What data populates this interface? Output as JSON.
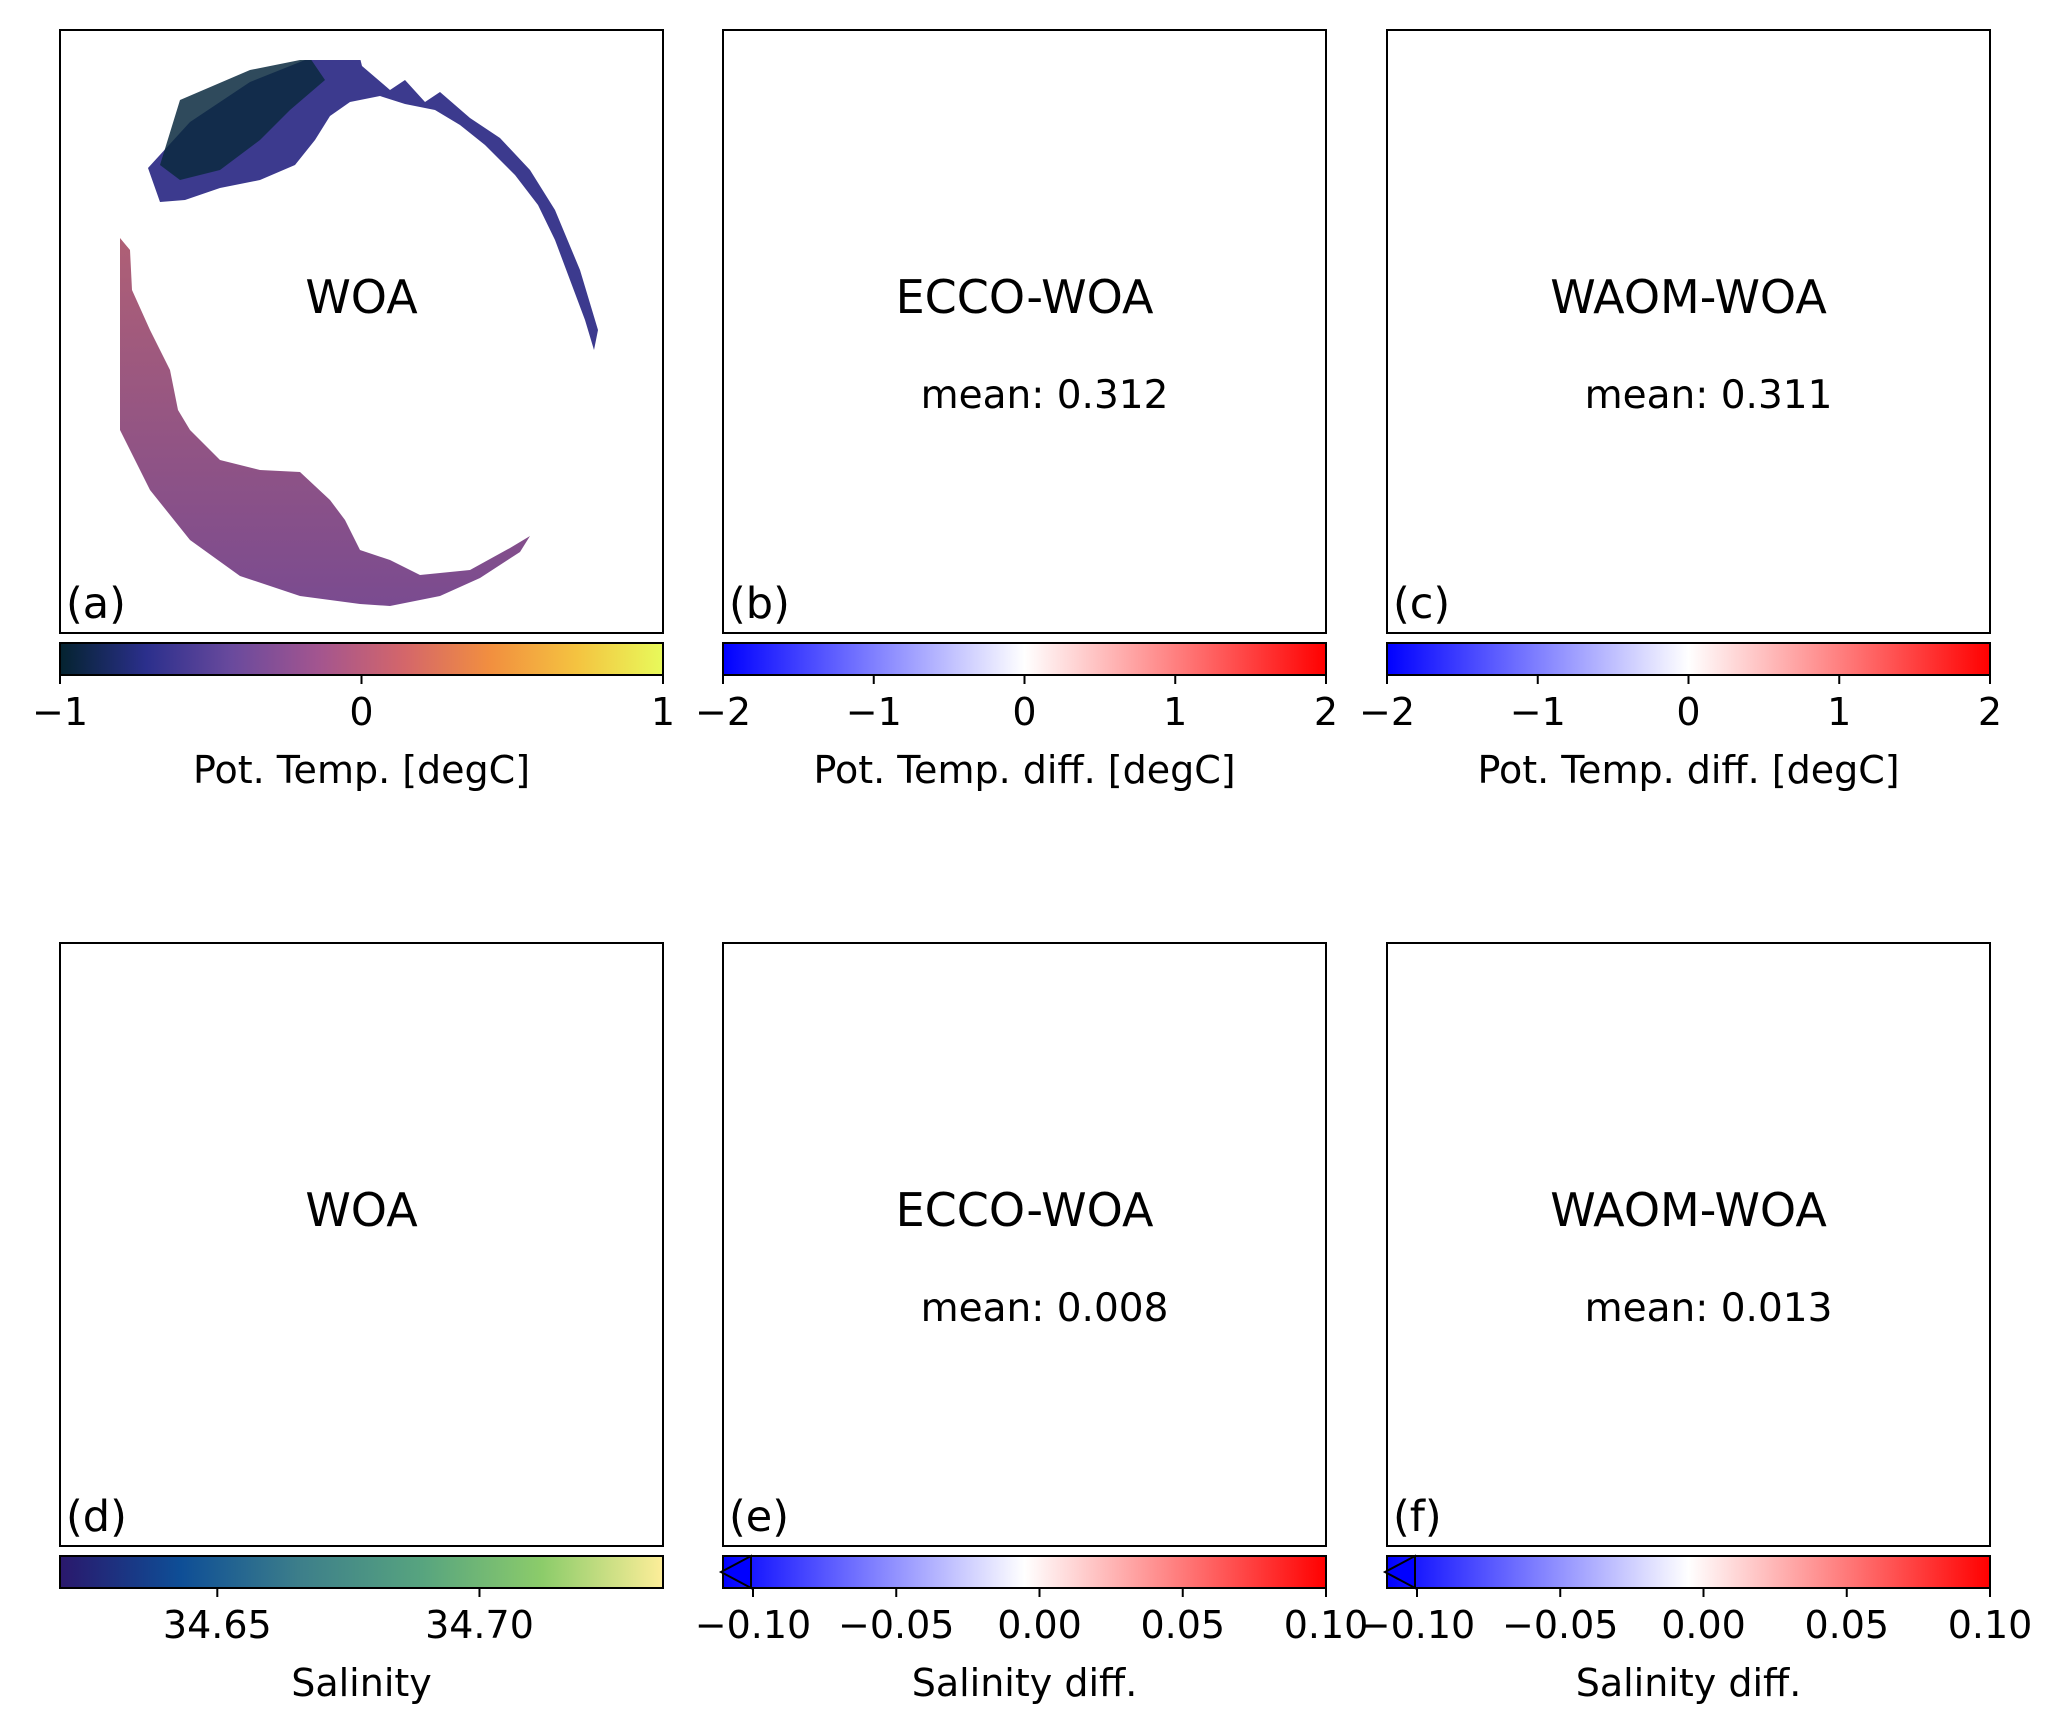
{
  "panels": [
    {
      "id": "a",
      "letter": "(a)",
      "title": "WOA",
      "mean": null,
      "cmap": "thermal",
      "kind": "temp",
      "colorbar": {
        "ticks": [
          "−1",
          "0",
          "1"
        ],
        "tick_values": [
          -1,
          0,
          1
        ],
        "range": [
          -1,
          1
        ],
        "extend": "neither",
        "label": "Pot. Temp. [degC]"
      }
    },
    {
      "id": "b",
      "letter": "(b)",
      "title": "ECCO-WOA",
      "mean": "mean: 0.312",
      "cmap": "bwr",
      "kind": "tdiff",
      "colorbar": {
        "ticks": [
          "−2",
          "−1",
          "0",
          "1",
          "2"
        ],
        "tick_values": [
          -2,
          -1,
          0,
          1,
          2
        ],
        "range": [
          -2,
          2
        ],
        "extend": "neither",
        "label": "Pot. Temp. diff. [degC]"
      }
    },
    {
      "id": "c",
      "letter": "(c)",
      "title": "WAOM-WOA",
      "mean": "mean: 0.311",
      "cmap": "bwr",
      "kind": "tdiff2",
      "colorbar": {
        "ticks": [
          "−2",
          "−1",
          "0",
          "1",
          "2"
        ],
        "tick_values": [
          -2,
          -1,
          0,
          1,
          2
        ],
        "range": [
          -2,
          2
        ],
        "extend": "neither",
        "label": "Pot. Temp. diff. [degC]"
      }
    },
    {
      "id": "d",
      "letter": "(d)",
      "title": "WOA",
      "mean": null,
      "cmap": "haline",
      "kind": "salt",
      "colorbar": {
        "ticks": [
          "34.65",
          "34.70"
        ],
        "tick_values": [
          34.65,
          34.7
        ],
        "range": [
          34.62,
          34.735
        ],
        "extend": "neither",
        "label": "Salinity"
      }
    },
    {
      "id": "e",
      "letter": "(e)",
      "title": "ECCO-WOA",
      "mean": "mean: 0.008",
      "cmap": "bwr",
      "kind": "sdiff",
      "colorbar": {
        "ticks": [
          "−0.10",
          "−0.05",
          "0.00",
          "0.05",
          "0.10"
        ],
        "tick_values": [
          -0.1,
          -0.05,
          0,
          0.05,
          0.1
        ],
        "range": [
          -0.1,
          0.1
        ],
        "extend": "min",
        "label": "Salinity diff."
      }
    },
    {
      "id": "f",
      "letter": "(f)",
      "title": "WAOM-WOA",
      "mean": "mean: 0.013",
      "cmap": "bwr",
      "kind": "sdiff2",
      "colorbar": {
        "ticks": [
          "−0.10",
          "−0.05",
          "0.00",
          "0.05",
          "0.10"
        ],
        "tick_values": [
          -0.1,
          -0.05,
          0,
          0.05,
          0.1
        ],
        "range": [
          -0.1,
          0.1
        ],
        "extend": "min",
        "label": "Salinity diff."
      }
    }
  ],
  "colors": {
    "thermal": [
      "#04232f",
      "#2b2f8c",
      "#6a4a9d",
      "#a3558f",
      "#d4666a",
      "#f28f3f",
      "#f4c340",
      "#e8fa5b"
    ],
    "bwr": [
      "#0000ff",
      "#ffffff",
      "#ff0000"
    ],
    "haline": [
      "#2a186c",
      "#0e4e96",
      "#3d7f8a",
      "#57a47f",
      "#8ccc6a",
      "#fdee99"
    ],
    "map_temp_north": "#3c3a8e",
    "map_temp_south": "#b06075",
    "map_salt_north": "#1b5f8c",
    "map_salt_south": "#7cc45e",
    "map_tdiff": "#f9c8c8",
    "map_sdiff": "#fbe0e0"
  }
}
